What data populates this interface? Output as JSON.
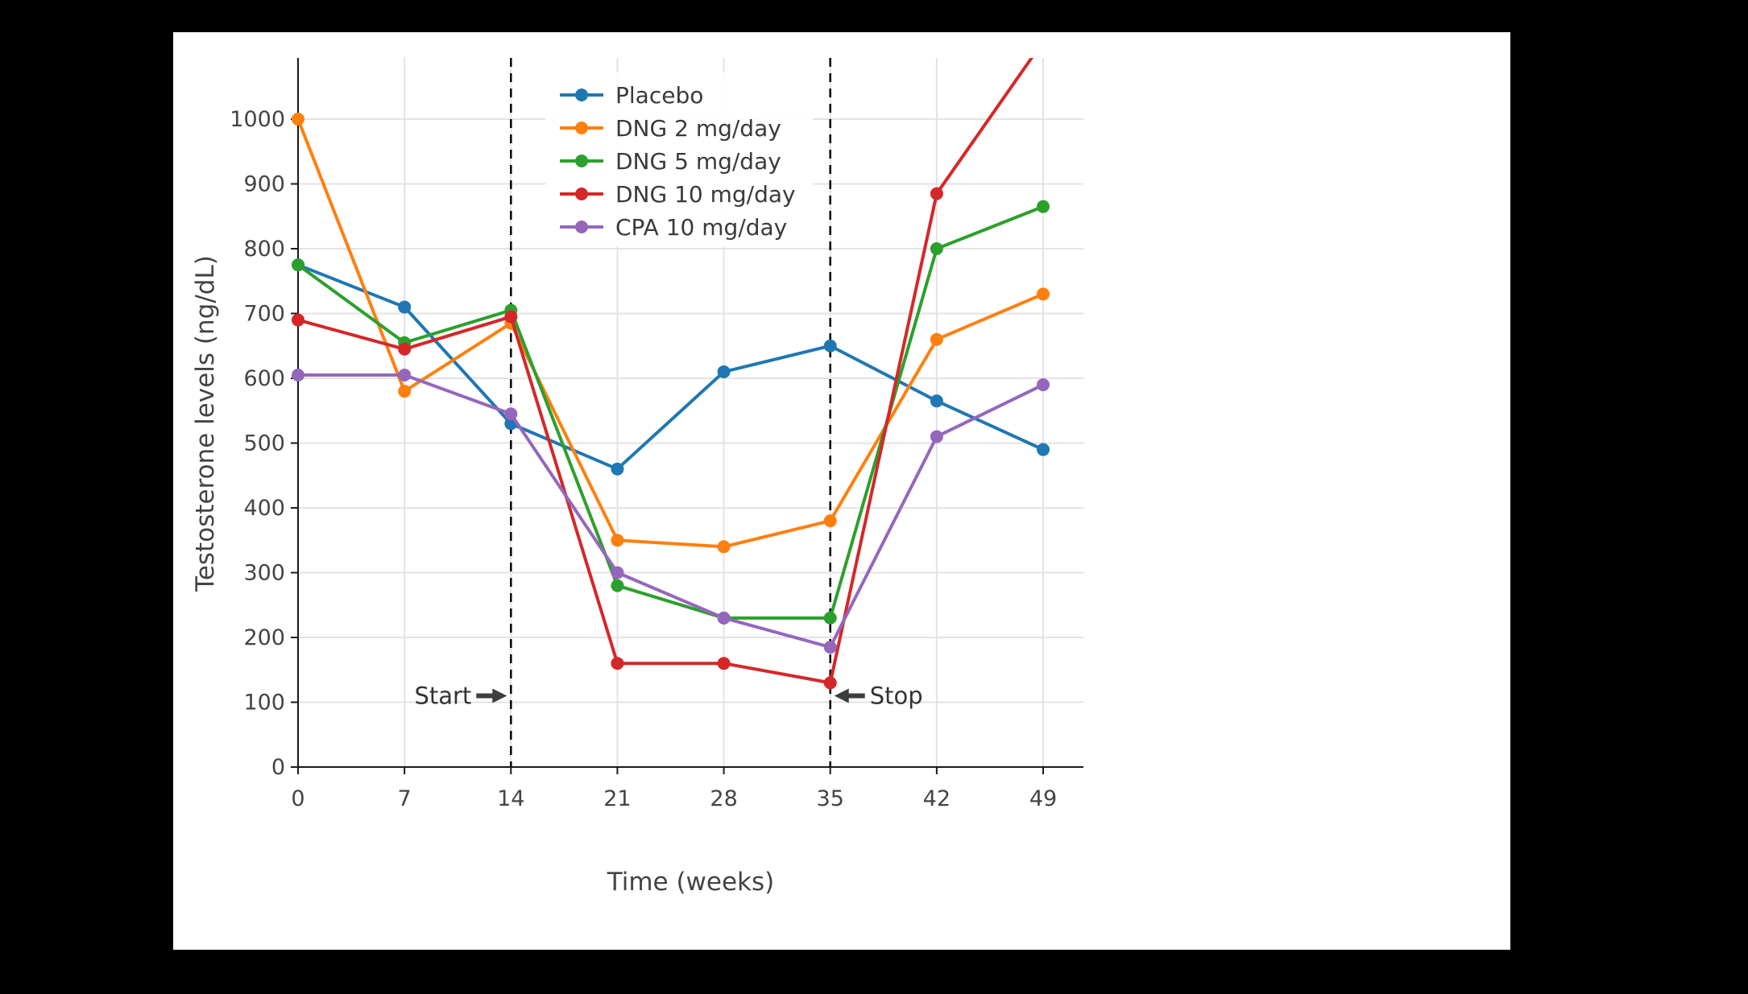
{
  "page": {
    "background_color": "#000000",
    "card_background_color": "#ffffff"
  },
  "chart_data": {
    "type": "line",
    "title": "",
    "xlabel": "Time (weeks)",
    "ylabel": "Testosterone levels (ng/dL)",
    "x": [
      0,
      7,
      14,
      21,
      28,
      35,
      42,
      49
    ],
    "xticks": [
      "0",
      "7",
      "14",
      "21",
      "28",
      "35",
      "42",
      "49"
    ],
    "yticks": [
      0,
      100,
      200,
      300,
      400,
      500,
      600,
      700,
      800,
      900,
      1000
    ],
    "ylim": [
      0,
      1090
    ],
    "xlim": [
      0,
      51.6
    ],
    "grid": true,
    "legend_position": "inside-top-center",
    "series": [
      {
        "name": "Placebo",
        "color": "#1f77b4",
        "marker": "circle",
        "values": [
          775,
          710,
          530,
          460,
          610,
          650,
          565,
          490
        ]
      },
      {
        "name": "DNG 2 mg/day",
        "color": "#ff7f0e",
        "marker": "circle",
        "values": [
          1000,
          580,
          685,
          350,
          340,
          380,
          660,
          730
        ]
      },
      {
        "name": "DNG 5 mg/day",
        "color": "#2ca02c",
        "marker": "circle",
        "values": [
          775,
          655,
          705,
          280,
          230,
          230,
          800,
          865
        ]
      },
      {
        "name": "DNG 10 mg/day",
        "color": "#d62728",
        "marker": "circle",
        "values": [
          690,
          645,
          695,
          160,
          160,
          130,
          885,
          1120
        ]
      },
      {
        "name": "CPA 10 mg/day",
        "color": "#9467bd",
        "marker": "circle",
        "values": [
          605,
          605,
          545,
          300,
          230,
          185,
          510,
          590
        ]
      }
    ],
    "vlines": [
      {
        "x": 14,
        "style": "dashed",
        "color": "#000000"
      },
      {
        "x": 35,
        "style": "dashed",
        "color": "#000000"
      }
    ],
    "annotations": [
      {
        "text": "Start",
        "x": 14,
        "y": 110,
        "arrow": "right"
      },
      {
        "text": "Stop",
        "x": 35,
        "y": 110,
        "arrow": "left"
      }
    ],
    "colors": {
      "grid": "#e3e3e3",
      "axis": "#1a1a1a",
      "tick_label": "#444444",
      "annotation": "#3d3d3d"
    }
  }
}
